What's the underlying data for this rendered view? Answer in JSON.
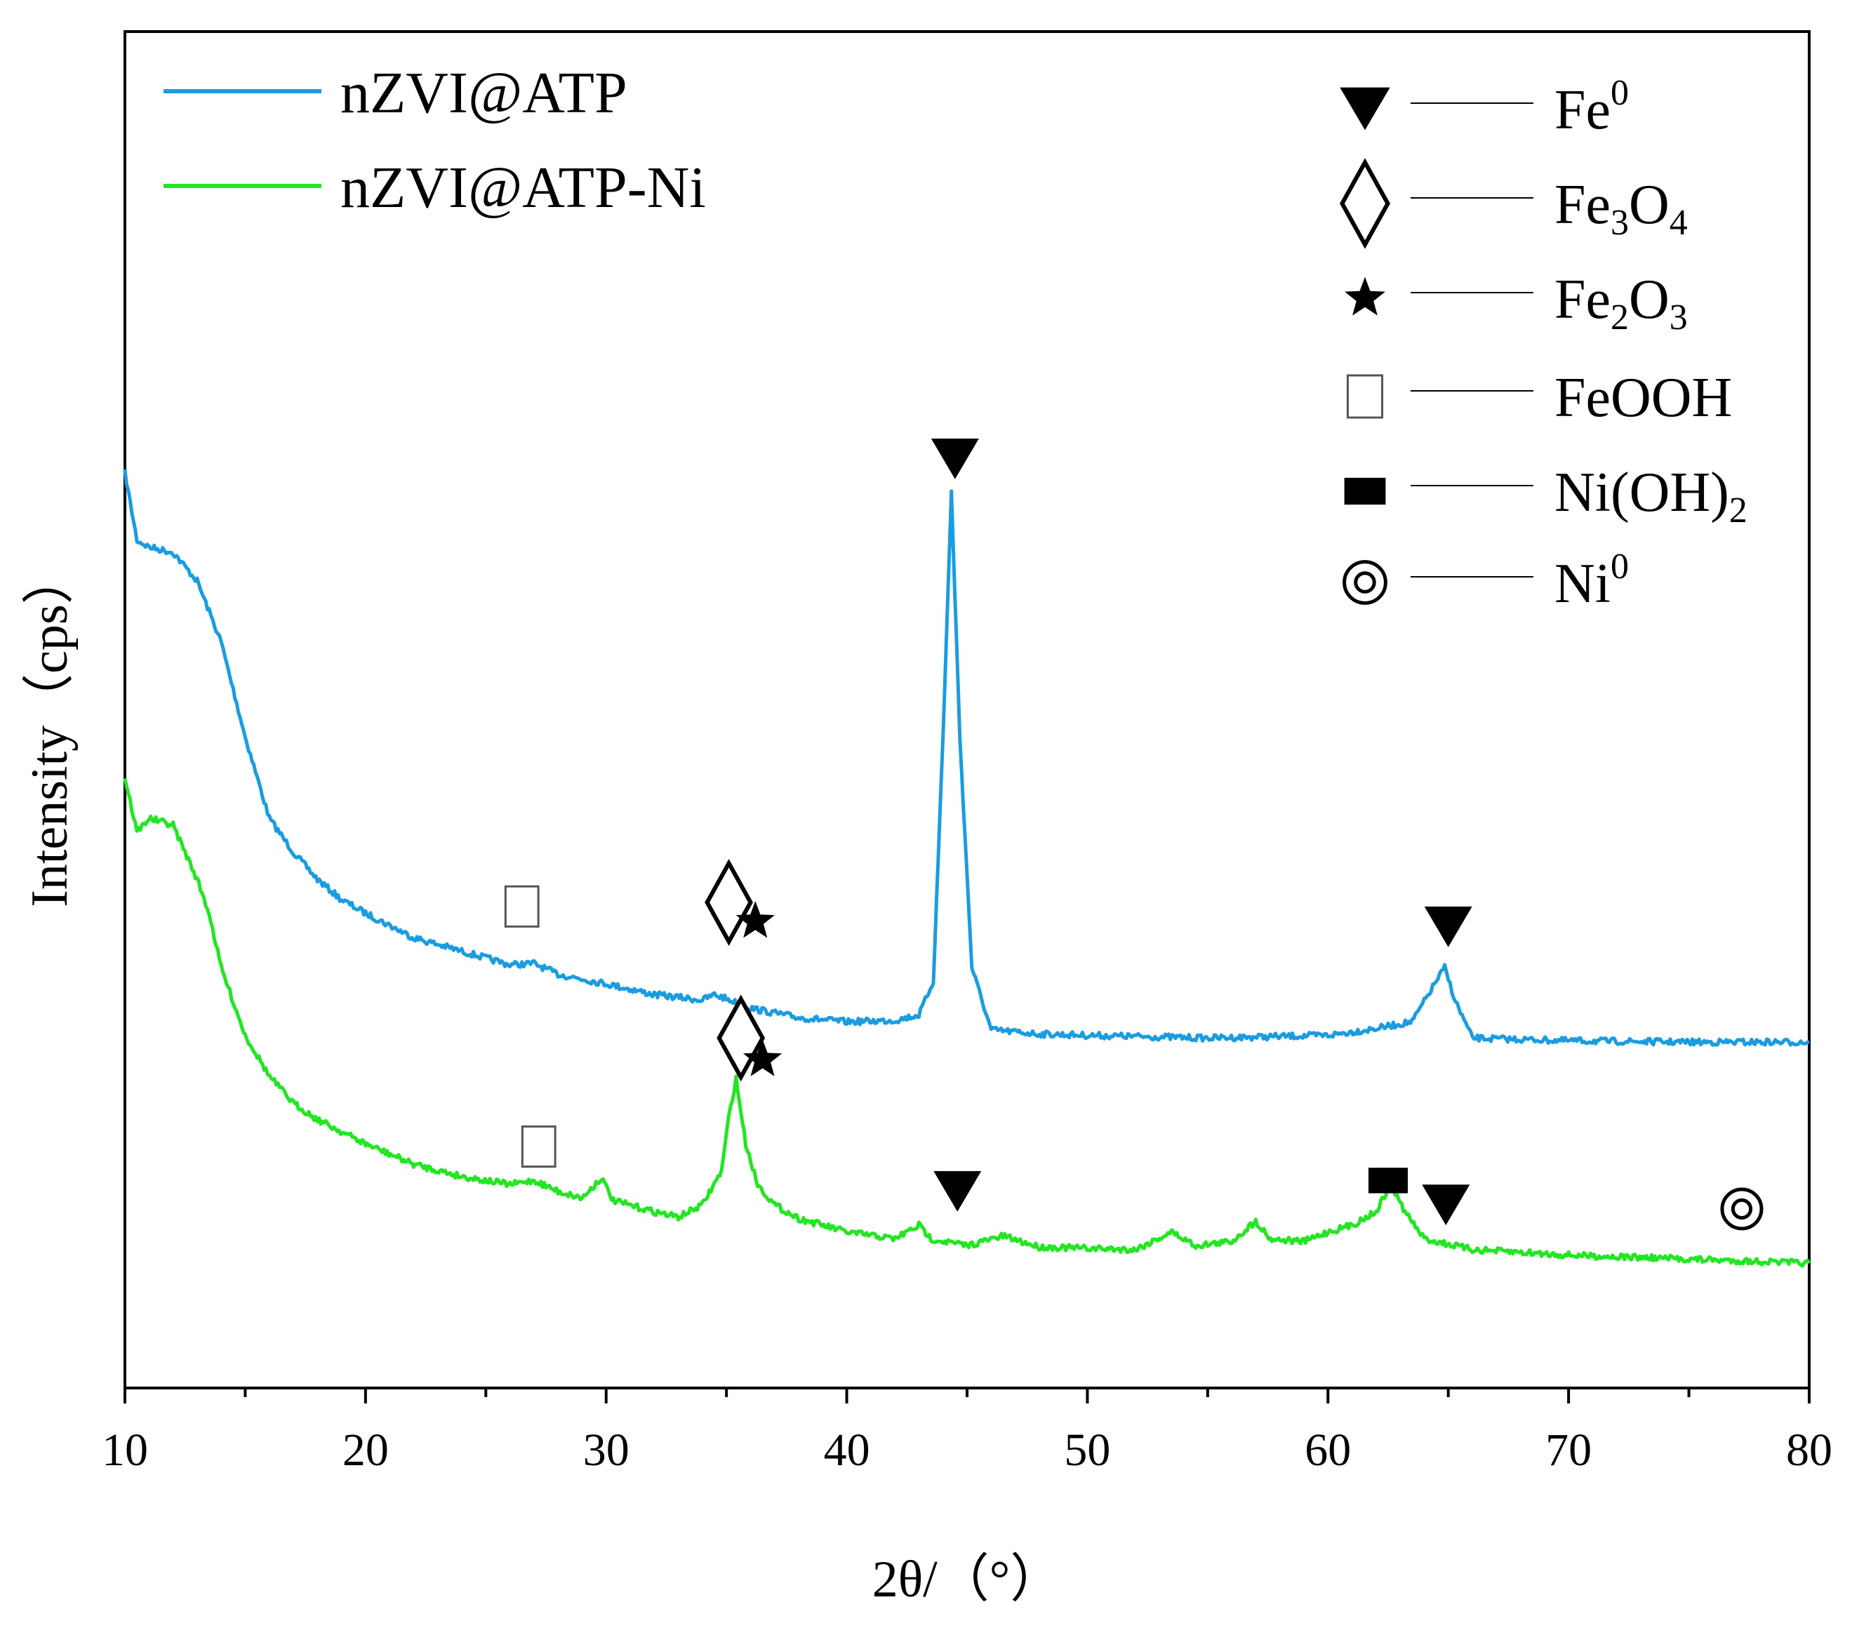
{
  "chart_data": {
    "type": "line",
    "title": "",
    "xlabel": "2θ/（°）",
    "ylabel": "Intensity（cps）",
    "xlim": [
      10,
      80
    ],
    "ylim": [
      0,
      100
    ],
    "y_ticks_shown": false,
    "xticks": [
      10,
      20,
      30,
      40,
      50,
      60,
      70,
      80
    ],
    "xtick_labels": [
      "10",
      "20",
      "30",
      "40",
      "50",
      "60",
      "70",
      "80"
    ],
    "grid": false,
    "legend_position": "top-left",
    "note": "Intensity is in arbitrary units (no y tick labels); values approximate the relative curve height.",
    "series": [
      {
        "name": "nZVI@ATP",
        "color": "#1a9ce0",
        "points": [
          [
            10,
            67.5
          ],
          [
            10.5,
            62.5
          ],
          [
            11,
            62
          ],
          [
            12,
            61.6
          ],
          [
            13,
            59.5
          ],
          [
            14,
            55
          ],
          [
            15,
            48
          ],
          [
            16,
            42
          ],
          [
            17,
            39.5
          ],
          [
            18,
            37.5
          ],
          [
            19,
            36
          ],
          [
            20,
            35
          ],
          [
            22,
            33.2
          ],
          [
            24,
            32.2
          ],
          [
            26,
            31.2
          ],
          [
            27,
            31.3
          ],
          [
            28,
            30.5
          ],
          [
            30,
            29.8
          ],
          [
            32,
            29
          ],
          [
            34,
            28.6
          ],
          [
            34.5,
            29
          ],
          [
            35,
            28.7
          ],
          [
            36,
            28
          ],
          [
            38,
            27.3
          ],
          [
            40,
            27
          ],
          [
            42,
            27.1
          ],
          [
            43,
            27.5
          ],
          [
            43.6,
            30
          ],
          [
            44,
            48
          ],
          [
            44.35,
            66
          ],
          [
            44.7,
            48
          ],
          [
            45.2,
            31
          ],
          [
            46,
            26.4
          ],
          [
            48,
            26.1
          ],
          [
            50,
            26
          ],
          [
            55,
            25.8
          ],
          [
            60,
            26
          ],
          [
            62,
            26.5
          ],
          [
            63.5,
            27
          ],
          [
            64.5,
            30
          ],
          [
            64.85,
            31
          ],
          [
            65.3,
            28.5
          ],
          [
            66,
            25.8
          ],
          [
            70,
            25.6
          ],
          [
            75,
            25.5
          ],
          [
            80,
            25.5
          ]
        ]
      },
      {
        "name": "nZVI@ATP-Ni",
        "color": "#22e622",
        "points": [
          [
            10,
            45
          ],
          [
            10.5,
            41
          ],
          [
            11,
            42
          ],
          [
            12,
            41.5
          ],
          [
            13,
            37.5
          ],
          [
            13.5,
            35
          ],
          [
            14,
            31
          ],
          [
            15,
            26
          ],
          [
            16,
            23
          ],
          [
            17,
            21
          ],
          [
            18,
            19.8
          ],
          [
            20,
            18
          ],
          [
            22,
            16.5
          ],
          [
            24,
            15.6
          ],
          [
            26,
            15
          ],
          [
            27,
            15.3
          ],
          [
            28,
            14.5
          ],
          [
            29,
            14
          ],
          [
            29.8,
            15.5
          ],
          [
            30.3,
            13.8
          ],
          [
            32,
            13
          ],
          [
            33,
            12.6
          ],
          [
            34,
            13.5
          ],
          [
            34.8,
            16
          ],
          [
            35.1,
            20
          ],
          [
            35.4,
            22.8
          ],
          [
            35.8,
            18
          ],
          [
            36.3,
            15
          ],
          [
            37,
            13.5
          ],
          [
            38,
            12.5
          ],
          [
            40,
            11.5
          ],
          [
            42,
            11
          ],
          [
            43,
            12
          ],
          [
            43.5,
            11
          ],
          [
            45,
            10.5
          ],
          [
            46.5,
            11.2
          ],
          [
            48,
            10.4
          ],
          [
            50,
            10.3
          ],
          [
            52,
            10.2
          ],
          [
            53.5,
            11.5
          ],
          [
            54.5,
            10.5
          ],
          [
            56,
            10.8
          ],
          [
            57,
            12.3
          ],
          [
            57.6,
            11
          ],
          [
            59,
            10.8
          ],
          [
            60,
            11.5
          ],
          [
            61,
            12
          ],
          [
            62,
            13
          ],
          [
            62.6,
            15
          ],
          [
            63.2,
            13
          ],
          [
            64,
            11
          ],
          [
            66,
            10.2
          ],
          [
            70,
            9.8
          ],
          [
            75,
            9.5
          ],
          [
            80,
            9.2
          ]
        ]
      }
    ],
    "phase_legend": [
      {
        "symbol": "▼",
        "label": "Fe",
        "sub": "",
        "sup": "0"
      },
      {
        "symbol": "◇",
        "label": "Fe",
        "sub": "3",
        "mid": "O",
        "sub2": "4"
      },
      {
        "symbol": "★",
        "label": "Fe",
        "sub": "2",
        "mid": "O",
        "sub2": "3"
      },
      {
        "symbol": "□",
        "label": "FeOOH"
      },
      {
        "symbol": "■",
        "label": "Ni(OH)",
        "sub": "2"
      },
      {
        "symbol": "◎",
        "label": "Ni",
        "sup": "0"
      }
    ],
    "annotations": [
      {
        "series": "nZVI@ATP",
        "phase": "FeOOH",
        "symbol": "□",
        "x": 26.5,
        "y": 35.5
      },
      {
        "series": "nZVI@ATP",
        "phase": "Fe3O4",
        "symbol": "◇",
        "x": 35.1,
        "y": 35.8
      },
      {
        "series": "nZVI@ATP",
        "phase": "Fe2O3",
        "symbol": "★",
        "x": 36.2,
        "y": 34.4
      },
      {
        "series": "nZVI@ATP",
        "phase": "Fe0",
        "symbol": "▼",
        "x": 44.5,
        "y": 68.5
      },
      {
        "series": "nZVI@ATP",
        "phase": "Fe0",
        "symbol": "▼",
        "x": 65,
        "y": 34
      },
      {
        "series": "nZVI@ATP-Ni",
        "phase": "FeOOH",
        "symbol": "□",
        "x": 27.2,
        "y": 17.8
      },
      {
        "series": "nZVI@ATP-Ni",
        "phase": "Fe3O4",
        "symbol": "◇",
        "x": 35.6,
        "y": 25.8
      },
      {
        "series": "nZVI@ATP-Ni",
        "phase": "Fe2O3",
        "symbol": "★",
        "x": 36.5,
        "y": 24.2
      },
      {
        "series": "nZVI@ATP-Ni",
        "phase": "Fe0",
        "symbol": "▼",
        "x": 44.6,
        "y": 14.5
      },
      {
        "series": "nZVI@ATP-Ni",
        "phase": "Ni(OH)2",
        "symbol": "■",
        "x": 62.5,
        "y": 15.3
      },
      {
        "series": "nZVI@ATP-Ni",
        "phase": "Fe0",
        "symbol": "▼",
        "x": 64.9,
        "y": 13.5
      },
      {
        "series": "nZVI@ATP-Ni",
        "phase": "Ni0",
        "symbol": "◎",
        "x": 77.2,
        "y": 13.2
      }
    ]
  }
}
